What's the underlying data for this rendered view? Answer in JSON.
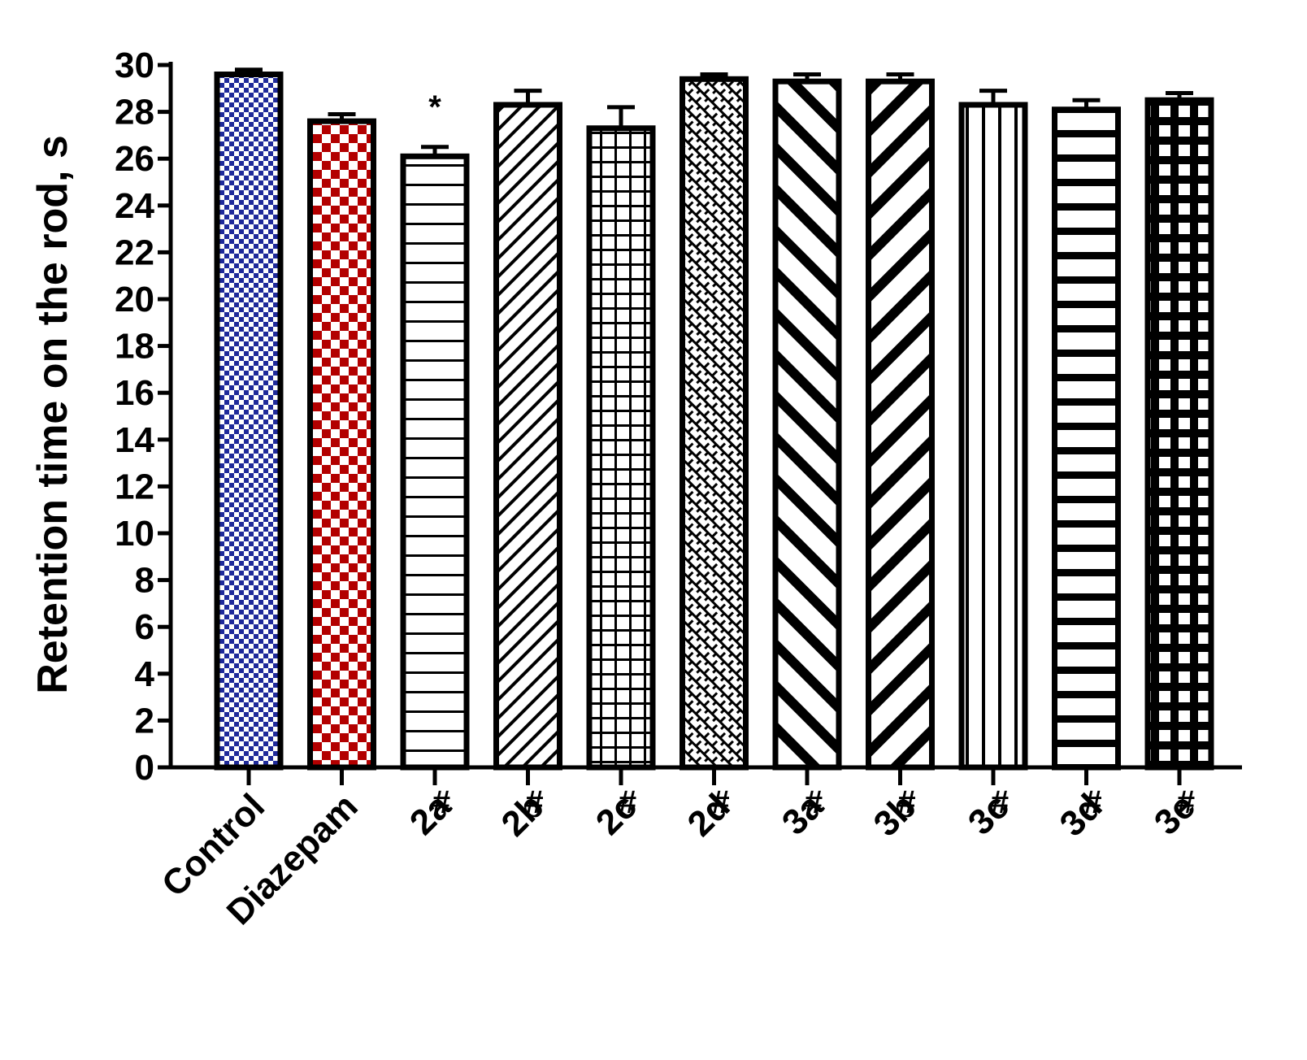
{
  "chart_data": {
    "type": "bar",
    "ylabel": "Retention time on the rod, s",
    "xlabel": "",
    "ylim": [
      0,
      30
    ],
    "yticks": [
      0,
      2,
      4,
      6,
      8,
      10,
      12,
      14,
      16,
      18,
      20,
      22,
      24,
      26,
      28,
      30
    ],
    "grid": false,
    "legend": "none",
    "categories": [
      "Control",
      "Diazepam",
      "2a",
      "2b",
      "2c",
      "2d",
      "3a",
      "3b",
      "3c",
      "3d",
      "3e"
    ],
    "category_marks": [
      "",
      "",
      "#",
      "#",
      "#",
      "#",
      "#",
      "#",
      "#",
      "#",
      "#"
    ],
    "values": [
      29.6,
      27.6,
      26.1,
      28.3,
      27.3,
      29.4,
      29.3,
      29.3,
      28.3,
      28.1,
      28.5
    ],
    "errors": [
      0.2,
      0.3,
      0.4,
      0.6,
      0.9,
      0.2,
      0.3,
      0.3,
      0.6,
      0.4,
      0.3
    ],
    "annotations": [
      {
        "category": "2a",
        "text": "*"
      }
    ],
    "patterns": [
      "blue-checker",
      "red-checker",
      "horizontal-thin",
      "diagonal-thin",
      "grid",
      "diamond-weave",
      "diagonal-thick-back",
      "diagonal-thick",
      "vertical",
      "horizontal-thick",
      "grid-thick"
    ],
    "colors": {
      "control": "#1f2a9a",
      "diazepam": "#b30000",
      "ink": "#000000"
    }
  }
}
